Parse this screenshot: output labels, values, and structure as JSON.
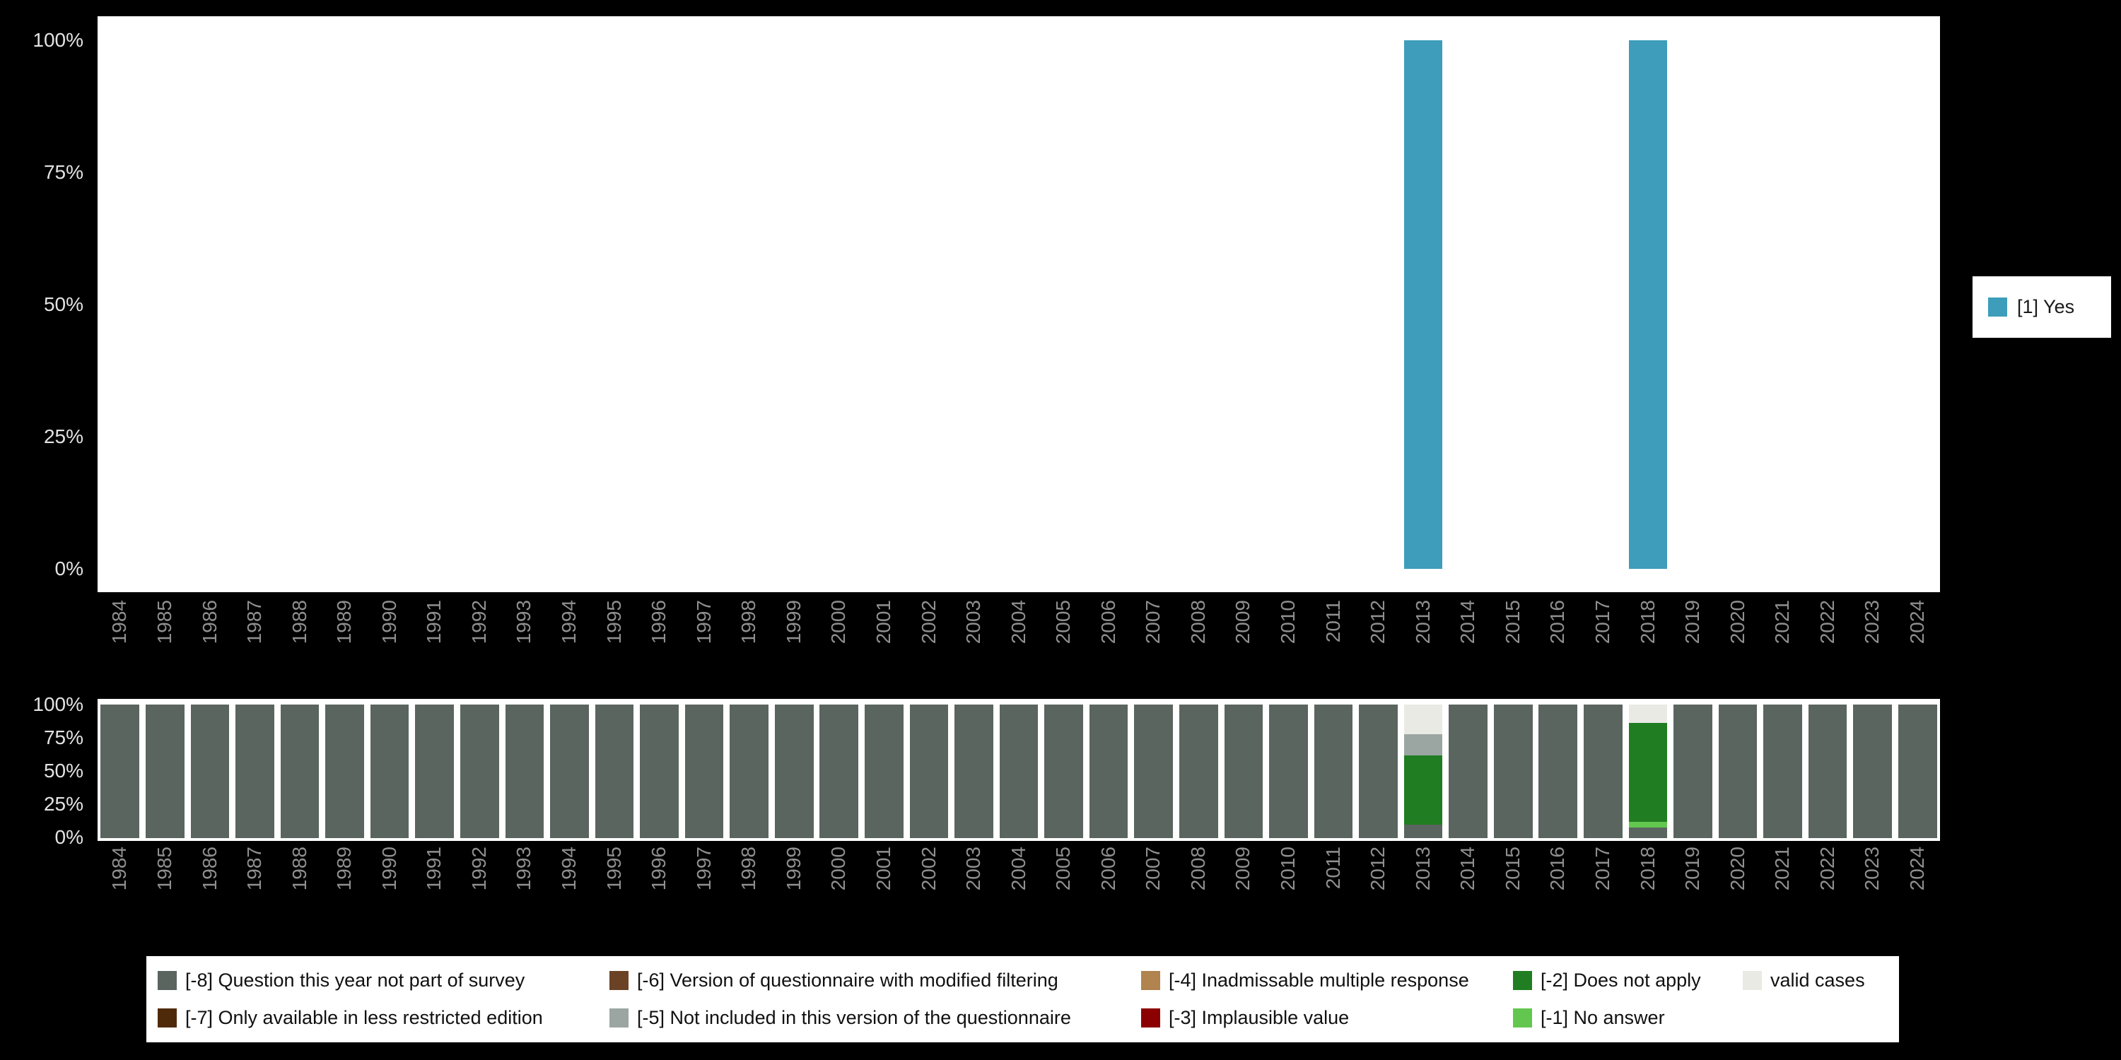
{
  "page": {
    "background": "#000000"
  },
  "chart_data": [
    {
      "id": "values-over-time",
      "type": "bar",
      "title": "",
      "xlabel": "",
      "ylabel": "",
      "ylim": [
        0,
        100
      ],
      "yticks": [
        "0%",
        "25%",
        "50%",
        "75%",
        "100%"
      ],
      "grid": false,
      "legend_position": "right",
      "categories": [
        "1984",
        "1985",
        "1986",
        "1987",
        "1988",
        "1989",
        "1990",
        "1991",
        "1992",
        "1993",
        "1994",
        "1995",
        "1996",
        "1997",
        "1998",
        "1999",
        "2000",
        "2001",
        "2002",
        "2003",
        "2004",
        "2005",
        "2006",
        "2007",
        "2008",
        "2009",
        "2010",
        "2011",
        "2012",
        "2013",
        "2014",
        "2015",
        "2016",
        "2017",
        "2018",
        "2019",
        "2020",
        "2021",
        "2022",
        "2023",
        "2024"
      ],
      "series": [
        {
          "name": "[1] Yes",
          "color": "#3d9dba",
          "values": [
            0,
            0,
            0,
            0,
            0,
            0,
            0,
            0,
            0,
            0,
            0,
            0,
            0,
            0,
            0,
            0,
            0,
            0,
            0,
            0,
            0,
            0,
            0,
            0,
            0,
            0,
            0,
            0,
            0,
            100,
            0,
            0,
            0,
            0,
            100,
            0,
            0,
            0,
            0,
            0,
            0
          ]
        }
      ]
    },
    {
      "id": "missing-values-over-time",
      "type": "stacked-bar",
      "title": "",
      "xlabel": "",
      "ylabel": "",
      "ylim": [
        0,
        100
      ],
      "yticks": [
        "0%",
        "25%",
        "50%",
        "75%",
        "100%"
      ],
      "grid": false,
      "legend_position": "bottom",
      "categories": [
        "1984",
        "1985",
        "1986",
        "1987",
        "1988",
        "1989",
        "1990",
        "1991",
        "1992",
        "1993",
        "1994",
        "1995",
        "1996",
        "1997",
        "1998",
        "1999",
        "2000",
        "2001",
        "2002",
        "2003",
        "2004",
        "2005",
        "2006",
        "2007",
        "2008",
        "2009",
        "2010",
        "2011",
        "2012",
        "2013",
        "2014",
        "2015",
        "2016",
        "2017",
        "2018",
        "2019",
        "2020",
        "2021",
        "2022",
        "2023",
        "2024"
      ],
      "series": [
        {
          "name": "[-8] Question this year not part of survey",
          "color": "#5b6560",
          "values": [
            100,
            100,
            100,
            100,
            100,
            100,
            100,
            100,
            100,
            100,
            100,
            100,
            100,
            100,
            100,
            100,
            100,
            100,
            100,
            100,
            100,
            100,
            100,
            100,
            100,
            100,
            100,
            100,
            100,
            10,
            100,
            100,
            100,
            100,
            8,
            100,
            100,
            100,
            100,
            100,
            100
          ]
        },
        {
          "name": "[-1] No answer",
          "color": "#63c74f",
          "values": [
            0,
            0,
            0,
            0,
            0,
            0,
            0,
            0,
            0,
            0,
            0,
            0,
            0,
            0,
            0,
            0,
            0,
            0,
            0,
            0,
            0,
            0,
            0,
            0,
            0,
            0,
            0,
            0,
            0,
            0,
            0,
            0,
            0,
            0,
            4,
            0,
            0,
            0,
            0,
            0,
            0
          ]
        },
        {
          "name": "[-2] Does not apply",
          "color": "#217d21",
          "values": [
            0,
            0,
            0,
            0,
            0,
            0,
            0,
            0,
            0,
            0,
            0,
            0,
            0,
            0,
            0,
            0,
            0,
            0,
            0,
            0,
            0,
            0,
            0,
            0,
            0,
            0,
            0,
            0,
            0,
            52,
            0,
            0,
            0,
            0,
            74,
            0,
            0,
            0,
            0,
            0,
            0
          ]
        },
        {
          "name": "[-5] Not included in this version of the questionnaire",
          "color": "#9ba6a2",
          "values": [
            0,
            0,
            0,
            0,
            0,
            0,
            0,
            0,
            0,
            0,
            0,
            0,
            0,
            0,
            0,
            0,
            0,
            0,
            0,
            0,
            0,
            0,
            0,
            0,
            0,
            0,
            0,
            0,
            0,
            16,
            0,
            0,
            0,
            0,
            0,
            0,
            0,
            0,
            0,
            0,
            0
          ]
        },
        {
          "name": "valid cases",
          "color": "#eaeae4",
          "values": [
            0,
            0,
            0,
            0,
            0,
            0,
            0,
            0,
            0,
            0,
            0,
            0,
            0,
            0,
            0,
            0,
            0,
            0,
            0,
            0,
            0,
            0,
            0,
            0,
            0,
            0,
            0,
            0,
            0,
            22,
            0,
            0,
            0,
            0,
            14,
            0,
            0,
            0,
            0,
            0,
            0
          ]
        }
      ]
    }
  ],
  "legend_bottom": {
    "items": [
      {
        "label": "[-8] Question this year not part of survey",
        "color": "#5b6560"
      },
      {
        "label": "[-6] Version of questionnaire with modified filtering",
        "color": "#6b4226"
      },
      {
        "label": "[-4] Inadmissable multiple response",
        "color": "#b0834f"
      },
      {
        "label": "[-2] Does not apply",
        "color": "#217d21"
      },
      {
        "label": "valid cases",
        "color": "#eaeae4"
      },
      {
        "label": "[-7] Only available in less restricted edition",
        "color": "#4f2a0a"
      },
      {
        "label": "[-5] Not included in this version of the questionnaire",
        "color": "#9ba6a2"
      },
      {
        "label": "[-3] Implausible value",
        "color": "#8b0000"
      },
      {
        "label": "[-1] No answer",
        "color": "#63c74f"
      }
    ]
  }
}
